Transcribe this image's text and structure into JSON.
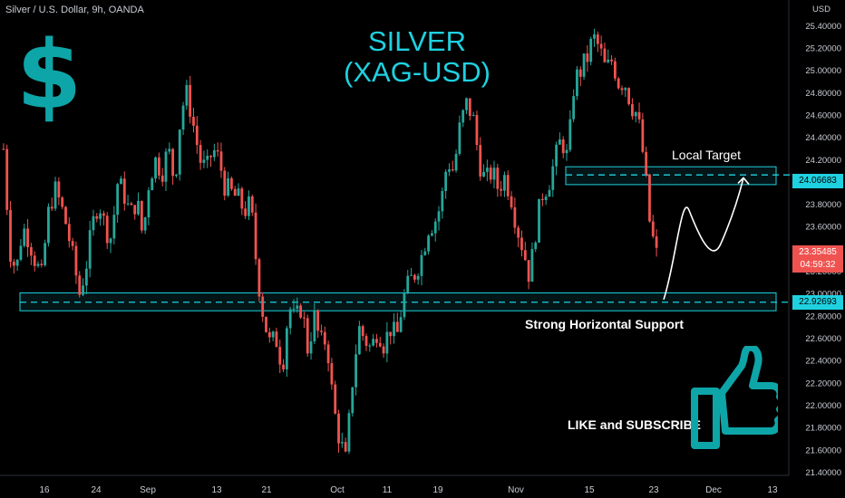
{
  "header": {
    "symbol": "Silver / U.S. Dollar, 9h, OANDA"
  },
  "title_line1": "SILVER",
  "title_line2": "(XAG-USD)",
  "annotations": {
    "target": "Local Target",
    "support": "Strong Horizontal Support",
    "cta": "LIKE and SUBSCRIBE",
    "dollar": "$"
  },
  "colors": {
    "up": "#26a69a",
    "down": "#ef5350",
    "zone": "#1fd1e0",
    "title": "#1fd1e0",
    "icon": "#0ea5a8",
    "background": "#000000"
  },
  "icons": [
    "dollar-sign-icon",
    "thumbs-up-icon",
    "arrow-icon"
  ],
  "price_tags": {
    "target": "24.06683",
    "support": "22.92693",
    "last_price": "23.35485",
    "countdown": "04:59:32"
  },
  "chart_data": {
    "type": "candlestick",
    "symbol": "XAG-USD",
    "interval": "9h",
    "ylim": [
      21.4,
      25.6
    ],
    "yunit": "USD",
    "yticks": [
      "25.40000",
      "25.20000",
      "25.00000",
      "24.80000",
      "24.60000",
      "24.40000",
      "24.20000",
      "24.00000",
      "23.80000",
      "23.60000",
      "23.40000",
      "23.20000",
      "23.00000",
      "22.80000",
      "22.60000",
      "22.40000",
      "22.20000",
      "22.00000",
      "21.80000",
      "21.60000",
      "21.40000"
    ],
    "xticks": [
      "16",
      "24",
      "Sep",
      "13",
      "21",
      "Oct",
      "11",
      "19",
      "Nov",
      "15",
      "23",
      "Dec",
      "13"
    ],
    "levels": {
      "local_target": 24.06683,
      "strong_support": 22.92693,
      "last_price": 23.35485
    },
    "zones": [
      {
        "name": "Local Target",
        "low": 23.98,
        "high": 24.14
      },
      {
        "name": "Strong Horizontal Support",
        "low": 22.85,
        "high": 23.01
      }
    ],
    "close_path": [
      24.3,
      23.4,
      23.2,
      23.6,
      23.5,
      23.3,
      23.15,
      23.7,
      23.95,
      23.8,
      23.6,
      23.3,
      23.0,
      23.25,
      23.6,
      23.85,
      23.6,
      23.5,
      24.0,
      23.9,
      23.7,
      23.85,
      23.5,
      24.05,
      24.2,
      24.1,
      24.3,
      24.0,
      24.65,
      24.8,
      24.5,
      24.2,
      24.1,
      24.3,
      24.2,
      23.95,
      23.9,
      23.85,
      23.75,
      23.8,
      23.2,
      22.8,
      22.55,
      22.6,
      22.35,
      22.9,
      22.75,
      22.9,
      22.5,
      22.8,
      22.55,
      22.6,
      22.0,
      21.7,
      21.5,
      22.2,
      22.7,
      22.6,
      22.5,
      22.7,
      22.55,
      22.7,
      22.6,
      22.95,
      23.1,
      23.2,
      23.35,
      23.6,
      23.65,
      23.8,
      24.2,
      24.1,
      24.5,
      24.7,
      24.6,
      24.2,
      24.0,
      24.1,
      23.95,
      24.05,
      23.9,
      23.6,
      23.4,
      23.15,
      23.6,
      23.9,
      24.0,
      24.2,
      24.4,
      24.2,
      24.9,
      25.0,
      25.1,
      25.3,
      25.2,
      25.0,
      25.1,
      24.9,
      24.9,
      24.7,
      24.6,
      24.2,
      23.6,
      23.35
    ],
    "projection": {
      "from": 22.95,
      "peak": 23.75,
      "trough": 23.45,
      "to": 24.04
    }
  }
}
